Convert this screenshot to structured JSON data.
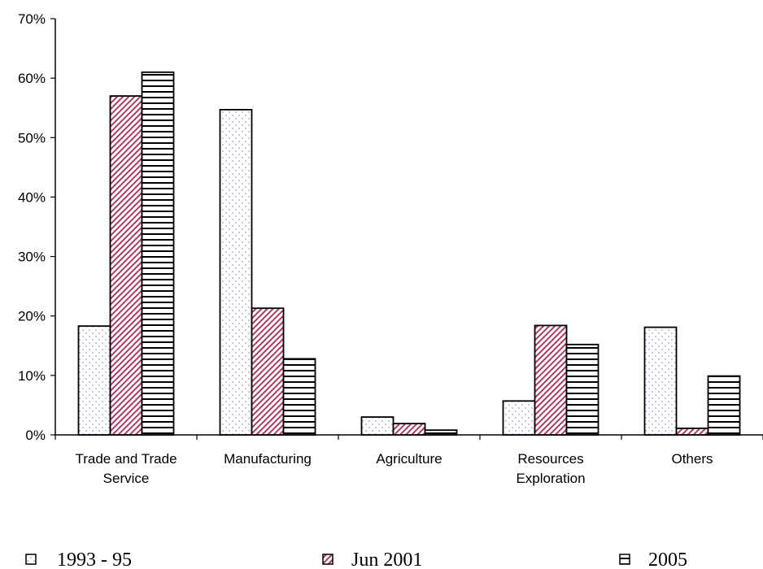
{
  "chart_data": {
    "type": "bar",
    "categories": [
      [
        "Trade and Trade",
        "Service"
      ],
      [
        "Manufacturing"
      ],
      [
        "Agriculture"
      ],
      [
        "Resources",
        "Exploration"
      ],
      [
        "Others"
      ]
    ],
    "series": [
      {
        "name": "1993 - 95",
        "values": [
          18.3,
          54.7,
          3.0,
          5.7,
          18.1
        ],
        "pattern": "dots"
      },
      {
        "name": "Jun 2001",
        "values": [
          57.0,
          21.3,
          1.9,
          18.4,
          1.1
        ],
        "pattern": "diagonal"
      },
      {
        "name": "2005",
        "values": [
          61.0,
          12.8,
          0.8,
          15.2,
          9.9
        ],
        "pattern": "horizontal"
      }
    ],
    "ylim": [
      0,
      70
    ],
    "yticks": [
      "0%",
      "10%",
      "20%",
      "30%",
      "40%",
      "50%",
      "60%",
      "70%"
    ],
    "grid": false,
    "legend_position": "bottom",
    "colors": {
      "dots": "#9a9ad6",
      "diagonal": "#b03a66",
      "horizontal": "#000000",
      "outline": "#000000"
    }
  }
}
